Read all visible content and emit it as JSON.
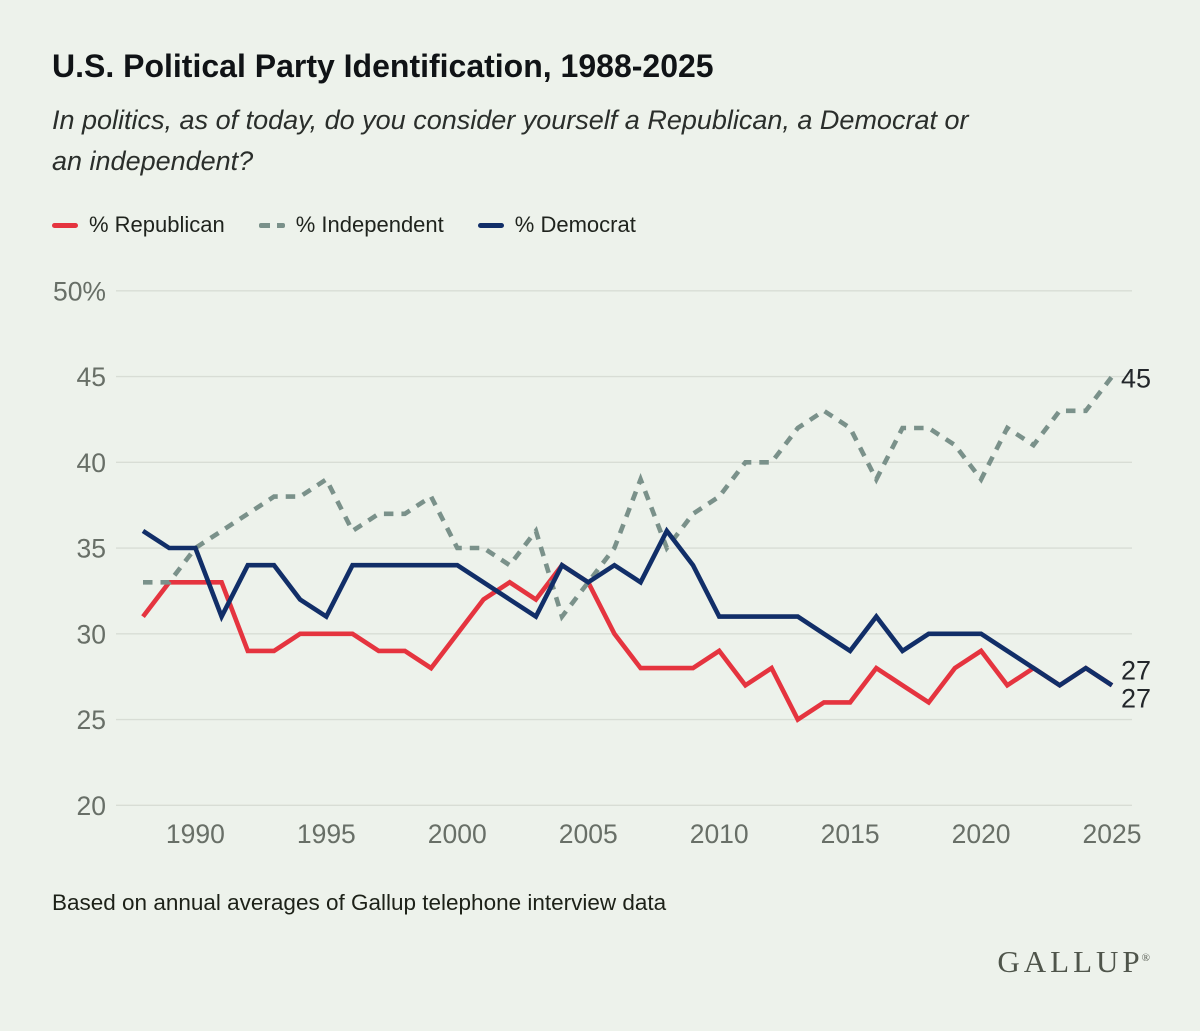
{
  "header": {
    "title": "U.S. Political Party Identification, 1988-2025",
    "subtitle": "In politics, as of today, do you consider yourself a Republican, a Democrat or\nan independent?"
  },
  "legend": [
    {
      "label": "% Republican",
      "color": "#e5343f",
      "style": "solid"
    },
    {
      "label": "% Independent",
      "color": "#7a918a",
      "style": "dashed"
    },
    {
      "label": "% Democrat",
      "color": "#112e68",
      "style": "solid"
    }
  ],
  "chart_data": {
    "type": "line",
    "title": "U.S. Political Party Identification, 1988-2025",
    "xlabel": "",
    "ylabel": "",
    "ylim": [
      20,
      50
    ],
    "grid": true,
    "legend_position": "top",
    "x": [
      1988,
      1989,
      1990,
      1991,
      1992,
      1993,
      1994,
      1995,
      1996,
      1997,
      1998,
      1999,
      2000,
      2001,
      2002,
      2003,
      2004,
      2005,
      2006,
      2007,
      2008,
      2009,
      2010,
      2011,
      2012,
      2013,
      2014,
      2015,
      2016,
      2017,
      2018,
      2019,
      2020,
      2021,
      2022,
      2023,
      2024,
      2025
    ],
    "series": [
      {
        "name": "% Republican",
        "key": "republican",
        "color": "#e5343f",
        "dash": null,
        "values": [
          31,
          33,
          33,
          33,
          29,
          29,
          30,
          30,
          30,
          29,
          29,
          28,
          30,
          32,
          33,
          32,
          34,
          33,
          30,
          28,
          28,
          28,
          29,
          27,
          28,
          25,
          26,
          26,
          28,
          27,
          26,
          28,
          29,
          27,
          28,
          27,
          28,
          27
        ]
      },
      {
        "name": "% Independent",
        "key": "independent",
        "color": "#7a918a",
        "dash": [
          9.5,
          8
        ],
        "values": [
          33,
          33,
          35,
          36,
          37,
          38,
          38,
          39,
          36,
          37,
          37,
          38,
          35,
          35,
          34,
          36,
          31,
          33,
          35,
          39,
          35,
          37,
          38,
          40,
          40,
          42,
          43,
          42,
          39,
          42,
          42,
          41,
          39,
          42,
          41,
          43,
          43,
          45
        ]
      },
      {
        "name": "% Democrat",
        "key": "democrat",
        "color": "#112e68",
        "dash": null,
        "values": [
          36,
          35,
          35,
          31,
          34,
          34,
          32,
          31,
          34,
          34,
          34,
          34,
          34,
          33,
          32,
          31,
          34,
          33,
          34,
          33,
          36,
          34,
          31,
          31,
          31,
          31,
          30,
          29,
          31,
          29,
          30,
          30,
          30,
          29,
          28,
          27,
          28,
          27
        ]
      }
    ],
    "yticks": [
      {
        "value": 50,
        "label": "50%"
      },
      {
        "value": 45,
        "label": "45"
      },
      {
        "value": 40,
        "label": "40"
      },
      {
        "value": 35,
        "label": "35"
      },
      {
        "value": 30,
        "label": "30"
      },
      {
        "value": 25,
        "label": "25"
      },
      {
        "value": 20,
        "label": "20"
      }
    ],
    "xticks": [
      1990,
      1995,
      2000,
      2005,
      2010,
      2015,
      2020,
      2025
    ],
    "end_labels": [
      {
        "series": "independent",
        "text": "45"
      },
      {
        "series": "democrat",
        "text": "27"
      },
      {
        "series": "republican",
        "text": "27"
      }
    ]
  },
  "footer": {
    "note": "Based on annual averages of Gallup telephone interview data",
    "logo": "GALLUP",
    "logo_mark": "®"
  }
}
